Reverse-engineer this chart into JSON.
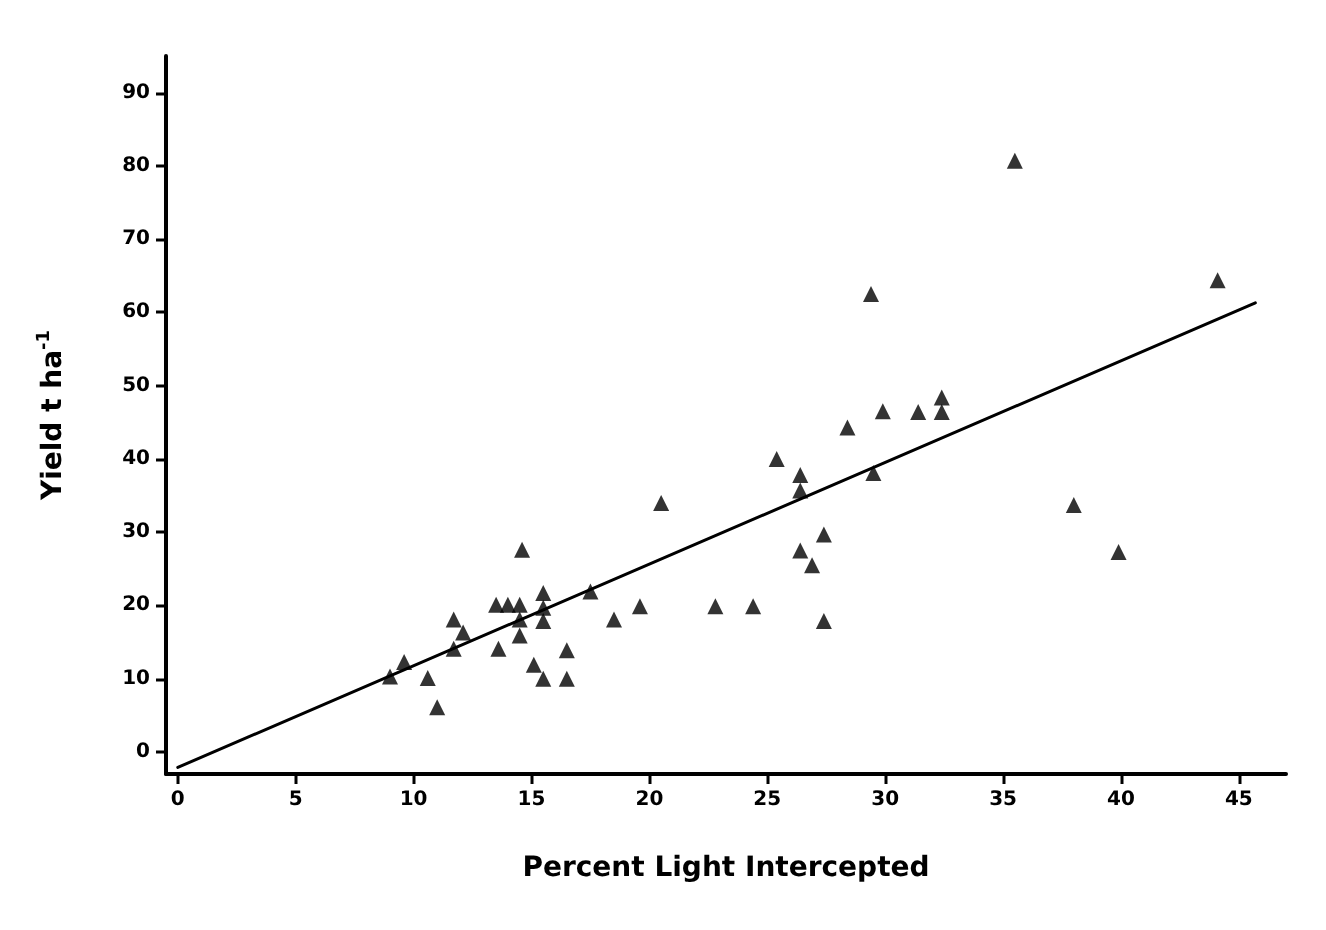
{
  "chart_data": {
    "type": "scatter",
    "xlabel": "Percent Light Intercepted",
    "ylabel": "Yield t ha$^{-1}$",
    "xlim": [
      -0.5,
      47
    ],
    "ylim": [
      -3,
      95
    ],
    "xticks": [
      0,
      5,
      10,
      15,
      20,
      25,
      30,
      35,
      40,
      45
    ],
    "yticks": [
      0,
      10,
      20,
      30,
      40,
      50,
      60,
      70,
      80,
      90
    ],
    "grid": false,
    "marker": "triangle",
    "series": [
      {
        "color": "#000000",
        "x": [
          9.0,
          9.6,
          10.6,
          11.0,
          11.7,
          11.7,
          12.1,
          13.5,
          13.6,
          14.0,
          14.5,
          14.6,
          14.5,
          14.5,
          15.1,
          15.5,
          15.5,
          15.5,
          15.5,
          16.5,
          16.5,
          17.5,
          18.5,
          19.6,
          20.5,
          22.8,
          24.4,
          25.4,
          26.4,
          26.4,
          26.4,
          26.9,
          27.4,
          27.4,
          28.4,
          29.4,
          29.5,
          29.9,
          31.4,
          32.4,
          32.4,
          35.5,
          38.0,
          39.9,
          44.1
        ],
        "values": [
          10.3,
          12.3,
          10.1,
          6.1,
          18.1,
          14.1,
          16.3,
          20.1,
          14.1,
          20.1,
          20.1,
          27.6,
          18.1,
          15.9,
          11.9,
          21.7,
          19.7,
          17.9,
          10.0,
          13.9,
          10.0,
          21.9,
          18.1,
          19.9,
          34.0,
          19.9,
          19.9,
          40.0,
          37.8,
          35.7,
          27.5,
          25.5,
          29.7,
          17.9,
          44.3,
          62.5,
          38.1,
          46.5,
          46.4,
          46.4,
          48.4,
          80.7,
          33.7,
          27.3,
          64.4
        ]
      },
      {
        "type": "line",
        "color": "#000000",
        "marker": "none",
        "line_style": "solid",
        "x": [
          0,
          45.7
        ],
        "values": [
          -2.1,
          61.3
        ]
      }
    ]
  }
}
